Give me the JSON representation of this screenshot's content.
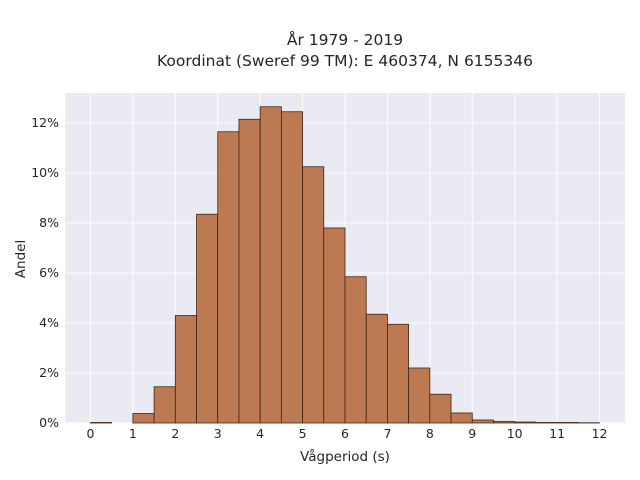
{
  "chart_data": {
    "type": "bar",
    "title_line1": "År 1979 - 2019",
    "title_line2": "Koordinat (Sweref 99 TM): E 460374, N 6155346",
    "xlabel": "Vågperiod (s)",
    "ylabel": "Andel",
    "xlim": [
      -0.6,
      12.6
    ],
    "ylim": [
      0,
      13.2
    ],
    "xticks": [
      0,
      1,
      2,
      3,
      4,
      5,
      6,
      7,
      8,
      9,
      10,
      11,
      12
    ],
    "xtick_labels": [
      "0",
      "1",
      "2",
      "3",
      "4",
      "5",
      "6",
      "7",
      "8",
      "9",
      "10",
      "11",
      "12"
    ],
    "yticks": [
      0,
      2,
      4,
      6,
      8,
      10,
      12
    ],
    "ytick_labels": [
      "0%",
      "2%",
      "4%",
      "6%",
      "8%",
      "10%",
      "12%"
    ],
    "bin_width": 0.5,
    "bin_starts": [
      0,
      0.5,
      1,
      1.5,
      2,
      2.5,
      3,
      3.5,
      4,
      4.5,
      5,
      5.5,
      6,
      6.5,
      7,
      7.5,
      8,
      8.5,
      9,
      9.5,
      10,
      10.5,
      11,
      11.5
    ],
    "values": [
      0.02,
      0.0,
      0.38,
      1.45,
      4.3,
      8.35,
      11.65,
      12.15,
      12.65,
      12.45,
      10.25,
      7.8,
      5.85,
      4.35,
      3.95,
      2.2,
      1.15,
      0.4,
      0.12,
      0.06,
      0.04,
      0.02,
      0.02,
      0.01
    ],
    "units": "%",
    "grid": true,
    "colors": {
      "bar_fill": "#bd7a52",
      "bar_edge": "#3d2516",
      "plot_background": "#eaeaf2",
      "grid": "#ffffff"
    }
  }
}
